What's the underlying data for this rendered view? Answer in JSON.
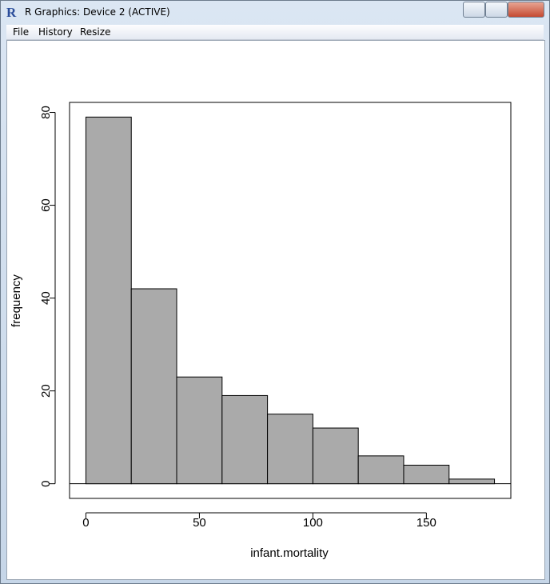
{
  "window": {
    "title": "R Graphics: Device 2 (ACTIVE)",
    "menu": [
      "File",
      "History",
      "Resize"
    ]
  },
  "chart_data": {
    "type": "histogram",
    "xlabel": "infant.mortality",
    "ylabel": "frequency",
    "bins": [
      0,
      20,
      40,
      60,
      80,
      100,
      120,
      140,
      160,
      180
    ],
    "values": [
      79,
      42,
      23,
      19,
      15,
      12,
      6,
      4,
      1
    ],
    "color": "#aaaaaa",
    "xlim": [
      -7.2,
      187.2
    ],
    "xticks": [
      0,
      50,
      100,
      150
    ],
    "ylim": [
      -3.16,
      82.16
    ],
    "yticks": [
      0,
      20,
      40,
      60,
      80
    ]
  }
}
